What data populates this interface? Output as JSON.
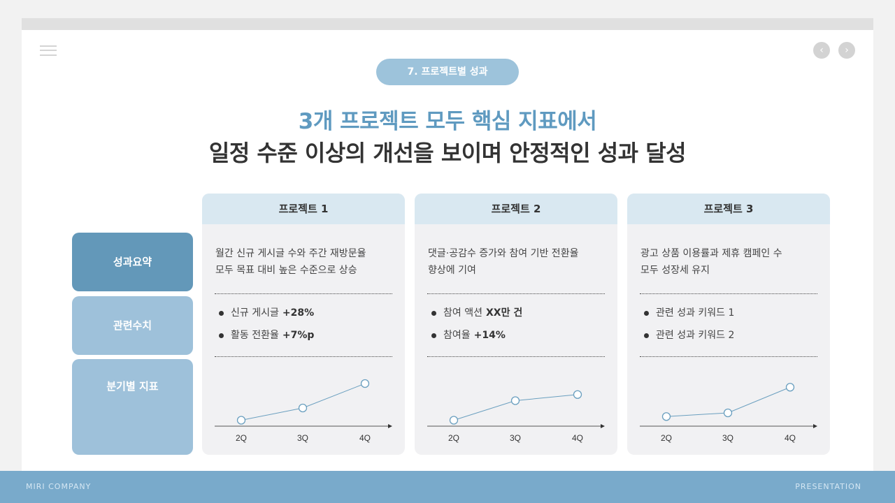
{
  "header": {
    "menu_icon": "hamburger-icon",
    "prev_icon": "chevron-left-icon",
    "next_icon": "chevron-right-icon",
    "prev_glyph": "‹",
    "next_glyph": "›"
  },
  "section": {
    "label": "7. 프로젝트별 성과"
  },
  "title": {
    "line1": "3개 프로젝트 모두 핵심 지표에서",
    "line2": "일정 수준 이상의 개선을 보이며 안정적인 성과 달성"
  },
  "row_labels": [
    "성과요약",
    "관련수치",
    "분기별 지표"
  ],
  "projects": [
    {
      "name": "프로젝트 1",
      "summary_line1": "월간 신규 게시글 수와 주간 재방문율",
      "summary_line2": "모두 목표 대비 높은 수준으로 상승",
      "bullets": [
        {
          "text": "신규 게시글",
          "value": "+28%"
        },
        {
          "text": "활동 전환율",
          "value": "+7%p"
        }
      ]
    },
    {
      "name": "프로젝트 2",
      "summary_line1": "댓글·공감수 증가와 참여 기반 전환율",
      "summary_line2": "향상에 기여",
      "bullets": [
        {
          "text": "참여 액션",
          "value": "XX만 건"
        },
        {
          "text": "참여율",
          "value": "+14%"
        }
      ]
    },
    {
      "name": "프로젝트 3",
      "summary_line1": "광고 상품 이용률과 제휴 캠페인 수",
      "summary_line2": "모두 성장세 유지",
      "bullets": [
        {
          "text": "관련 성과 키워드 1",
          "value": ""
        },
        {
          "text": "관련 성과 키워드 2",
          "value": ""
        }
      ]
    }
  ],
  "chart_data": [
    {
      "type": "line",
      "title": "프로젝트 1",
      "categories": [
        "2Q",
        "3Q",
        "4Q"
      ],
      "values": [
        1.0,
        2.0,
        4.0
      ],
      "xlabel": "",
      "ylabel": "",
      "grid": false
    },
    {
      "type": "line",
      "title": "프로젝트 2",
      "categories": [
        "2Q",
        "3Q",
        "4Q"
      ],
      "values": [
        1.0,
        2.6,
        3.1
      ],
      "xlabel": "",
      "ylabel": "",
      "grid": false
    },
    {
      "type": "line",
      "title": "프로젝트 3",
      "categories": [
        "2Q",
        "3Q",
        "4Q"
      ],
      "values": [
        1.3,
        1.6,
        3.7
      ],
      "xlabel": "",
      "ylabel": "",
      "grid": false
    }
  ],
  "colors": {
    "accent": "#5f9ac0",
    "pill": "#9dc3db",
    "row_primary": "#6398b9",
    "row_secondary": "#9ec1da",
    "card_head": "#d9e8f1",
    "card_body": "#f1f1f3",
    "footer": "#79aacb",
    "line": "#6a9fbf"
  },
  "footer": {
    "left": "MIRI COMPANY",
    "right": "PRESENTATION"
  }
}
